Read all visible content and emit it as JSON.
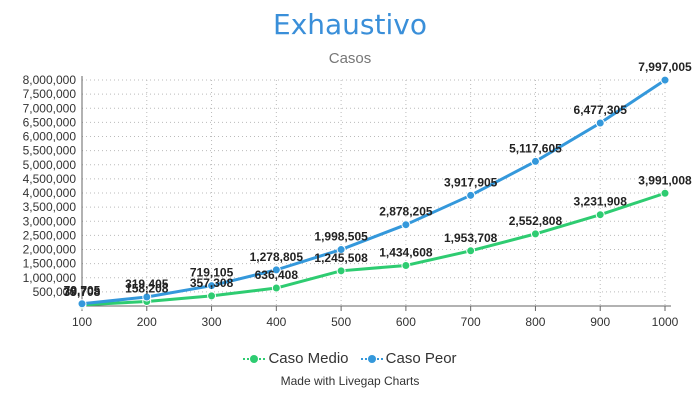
{
  "colors": {
    "caso_medio": "#2ecc71",
    "caso_peor": "#3498db",
    "title": "#3a8fd9"
  },
  "credit": "Made with Livegap Charts",
  "chart_data": {
    "type": "line",
    "title": "Exhaustivo",
    "subtitle": "Casos",
    "xlabel": "",
    "ylabel": "",
    "x": [
      100,
      200,
      300,
      400,
      500,
      600,
      700,
      800,
      900,
      1000
    ],
    "ylim": [
      0,
      8000000
    ],
    "yticks": [
      500000,
      1000000,
      1500000,
      2000000,
      2500000,
      3000000,
      3500000,
      4000000,
      4500000,
      5000000,
      5500000,
      6000000,
      6500000,
      7000000,
      7500000,
      8000000
    ],
    "ytick_labels": [
      "500,000",
      "1,000,000",
      "1,500,000",
      "2,000,000",
      "2,500,000",
      "3,000,000",
      "3,500,000",
      "4,000,000",
      "4,500,000",
      "5,000,000",
      "5,500,000",
      "6,000,000",
      "6,500,000",
      "7,000,000",
      "7,500,000",
      "8,000,000"
    ],
    "grid": true,
    "legend": "bottom-center",
    "series": [
      {
        "name": "Caso Medio",
        "color": "#2ecc71",
        "values": [
          39708,
          158208,
          357308,
          636408,
          1245508,
          1434608,
          1953708,
          2552808,
          3231908,
          3991008
        ],
        "labels": [
          "39,708",
          "158,208",
          "357,308",
          "636,408",
          "1,245,508",
          "1,434,608",
          "1,953,708",
          "2,552,808",
          "3,231,908",
          "3,991,008"
        ]
      },
      {
        "name": "Caso Peor",
        "color": "#3498db",
        "values": [
          79705,
          319405,
          719105,
          1278805,
          1998505,
          2878205,
          3917905,
          5117605,
          6477305,
          7997005
        ],
        "labels": [
          "79,705",
          "319,405",
          "719,105",
          "1,278,805",
          "1,998,505",
          "2,878,205",
          "3,917,905",
          "5,117,605",
          "6,477,305",
          "7,997,005"
        ]
      }
    ]
  }
}
